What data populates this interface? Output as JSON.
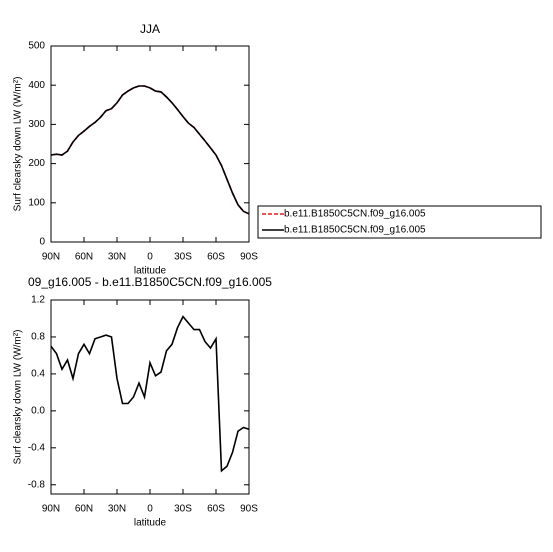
{
  "chart_data": [
    {
      "type": "line",
      "title": "JJA",
      "x_label": "latitude",
      "y_label": "Surf clearsky down LW (W/m²)",
      "x": [
        90,
        85,
        80,
        75,
        70,
        65,
        60,
        55,
        50,
        45,
        40,
        35,
        30,
        25,
        20,
        15,
        10,
        5,
        0,
        -5,
        -10,
        -15,
        -20,
        -25,
        -30,
        -35,
        -40,
        -45,
        -50,
        -55,
        -60,
        -65,
        -70,
        -75,
        -80,
        -85,
        -90
      ],
      "xlim": [
        90,
        -90
      ],
      "xticks": [
        {
          "value": 90,
          "label": "90N"
        },
        {
          "value": 60,
          "label": "60N"
        },
        {
          "value": 30,
          "label": "30N"
        },
        0,
        {
          "value": -30,
          "label": "30S"
        },
        {
          "value": -60,
          "label": "60S"
        },
        {
          "value": -90,
          "label": "90S"
        }
      ],
      "ylim": [
        0,
        500
      ],
      "yticks": [
        0,
        100,
        200,
        300,
        400,
        500
      ],
      "series": [
        {
          "name": "b.e11.B1850C5CN.f09_g16.005",
          "color": "#e31a1c",
          "dashed": true,
          "values": [
            222,
            224,
            222,
            232,
            255,
            272,
            283,
            295,
            305,
            318,
            335,
            340,
            355,
            375,
            385,
            393,
            398,
            398,
            393,
            385,
            383,
            370,
            355,
            338,
            320,
            303,
            292,
            275,
            258,
            240,
            222,
            195,
            160,
            125,
            95,
            78,
            72
          ]
        },
        {
          "name": "b.e11.B1850C5CN.f09_g16.005",
          "color": "#000000",
          "dashed": false,
          "values": [
            222,
            224,
            222,
            232,
            255,
            272,
            283,
            295,
            305,
            318,
            335,
            340,
            355,
            375,
            385,
            393,
            398,
            398,
            393,
            385,
            383,
            370,
            355,
            338,
            320,
            303,
            292,
            275,
            258,
            240,
            222,
            195,
            160,
            125,
            95,
            78,
            72
          ]
        }
      ]
    },
    {
      "type": "line",
      "title": "09_g16.005 - b.e11.B1850C5CN.f09_g16.005",
      "x_label": "latitude",
      "y_label": "Surf clearsky down LW (W/m²)",
      "x": [
        90,
        85,
        80,
        75,
        70,
        65,
        60,
        55,
        50,
        45,
        40,
        35,
        30,
        25,
        20,
        15,
        10,
        5,
        0,
        -5,
        -10,
        -15,
        -20,
        -25,
        -30,
        -35,
        -40,
        -45,
        -50,
        -55,
        -60,
        -65,
        -70,
        -75,
        -80,
        -85,
        -90
      ],
      "xlim": [
        90,
        -90
      ],
      "xticks": [
        {
          "value": 90,
          "label": "90N"
        },
        {
          "value": 60,
          "label": "60N"
        },
        {
          "value": 30,
          "label": "30N"
        },
        0,
        {
          "value": -30,
          "label": "30S"
        },
        {
          "value": -60,
          "label": "60S"
        },
        {
          "value": -90,
          "label": "90S"
        }
      ],
      "ylim": [
        -0.9,
        1.2
      ],
      "yticks": [
        -0.8,
        -0.4,
        {
          "value": 0,
          "label": "0.0"
        },
        0.4,
        0.8,
        1.2
      ],
      "series": [
        {
          "color": "#000000",
          "dashed": false,
          "values": [
            0.7,
            0.62,
            0.45,
            0.55,
            0.35,
            0.62,
            0.72,
            0.62,
            0.78,
            0.8,
            0.82,
            0.8,
            0.35,
            0.08,
            0.08,
            0.15,
            0.3,
            0.15,
            0.52,
            0.38,
            0.42,
            0.65,
            0.72,
            0.9,
            1.02,
            0.95,
            0.88,
            0.88,
            0.75,
            0.68,
            0.78,
            -0.65,
            -0.6,
            -0.45,
            -0.22,
            -0.18,
            -0.2
          ]
        }
      ]
    }
  ]
}
